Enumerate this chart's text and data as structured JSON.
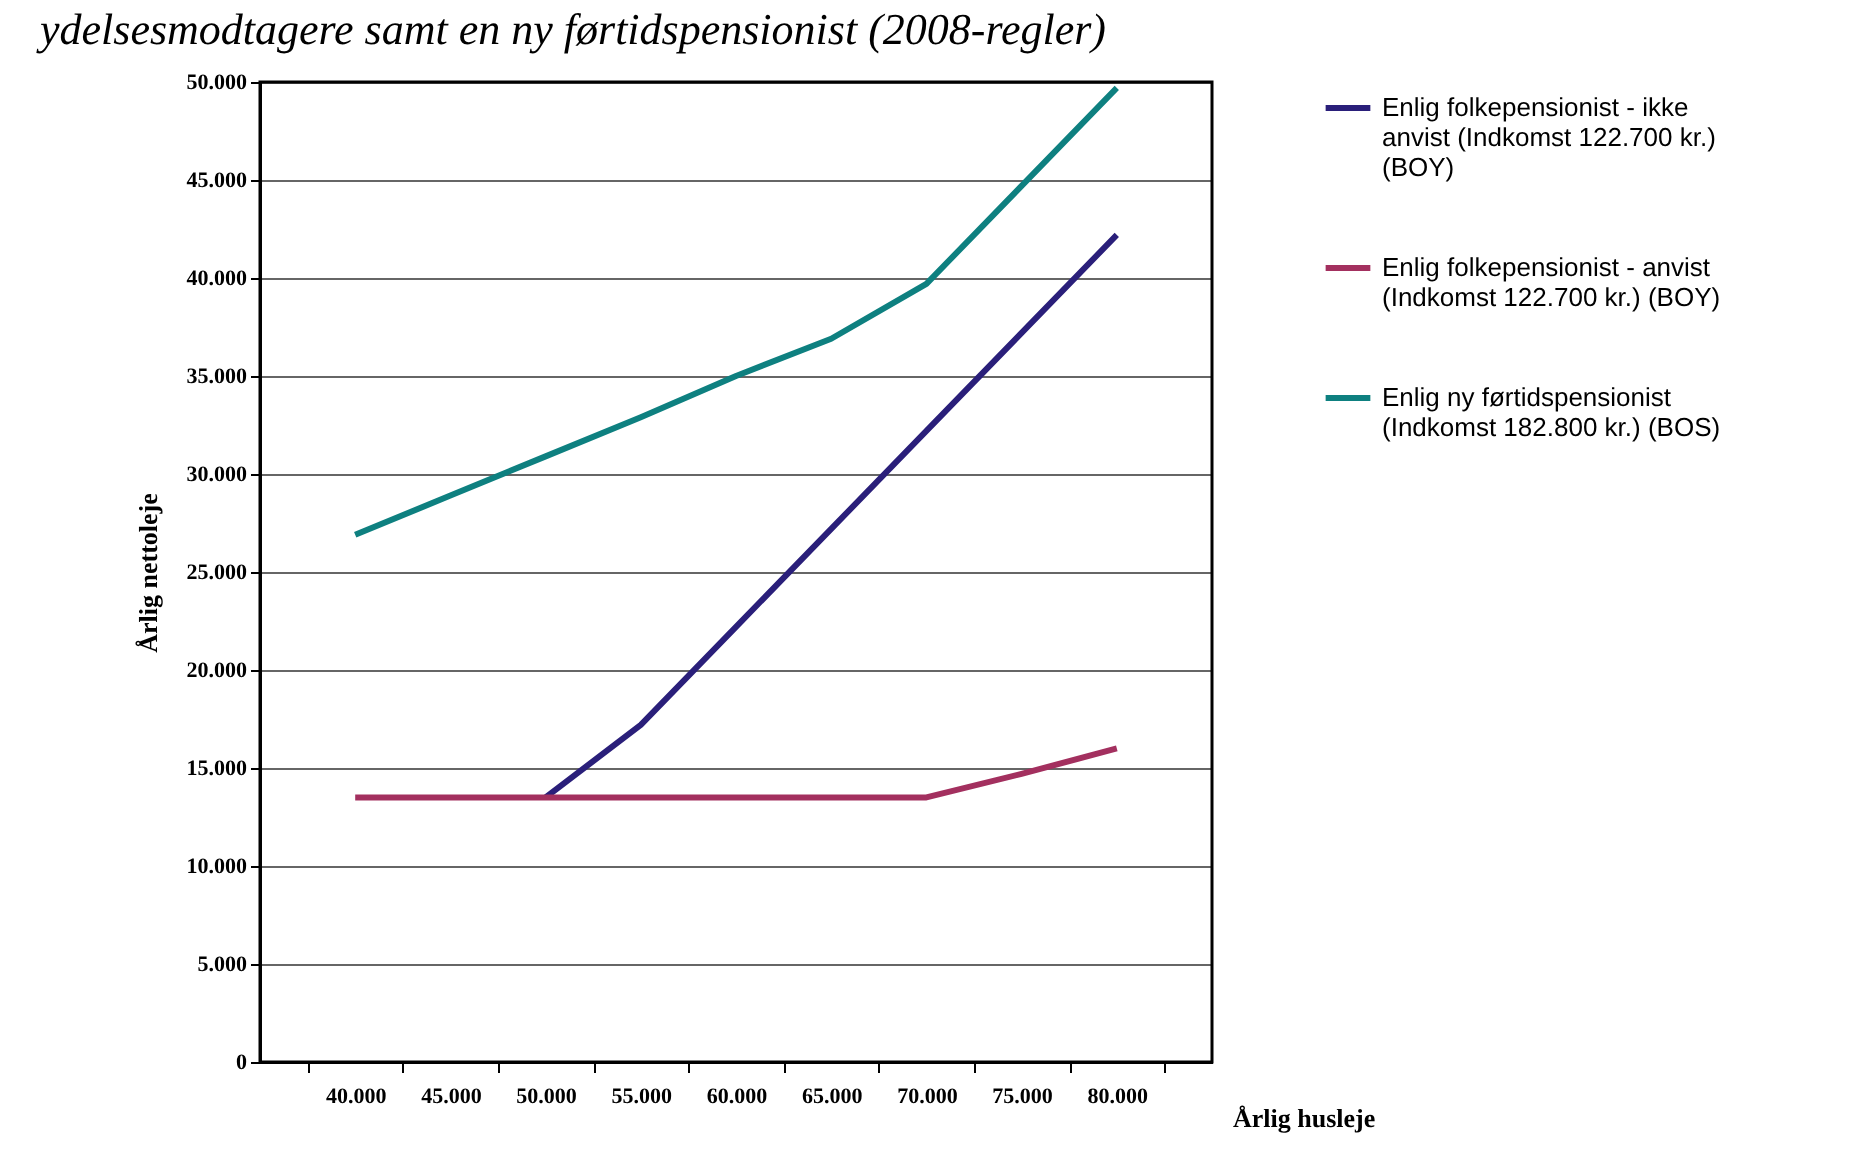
{
  "chart_data": {
    "type": "line",
    "title": "ydelsesmodtagere samt en ny førtidspensionist (2008-regler)",
    "xlabel": "Årlig husleje",
    "ylabel": "Årlig nettoleje",
    "categories": [
      "40.000",
      "45.000",
      "50.000",
      "55.000",
      "60.000",
      "65.000",
      "70.000",
      "75.000",
      "80.000"
    ],
    "ylim": [
      0,
      50000
    ],
    "yticks": [
      {
        "value": 0,
        "label": "0"
      },
      {
        "value": 5000,
        "label": "5.000"
      },
      {
        "value": 10000,
        "label": "10.000"
      },
      {
        "value": 15000,
        "label": "15.000"
      },
      {
        "value": 20000,
        "label": "20.000"
      },
      {
        "value": 25000,
        "label": "25.000"
      },
      {
        "value": 30000,
        "label": "30.000"
      },
      {
        "value": 35000,
        "label": "35.000"
      },
      {
        "value": 40000,
        "label": "40.000"
      },
      {
        "value": 45000,
        "label": "45.000"
      },
      {
        "value": 50000,
        "label": "50.000"
      }
    ],
    "grid": "y",
    "legend": "right",
    "marker": "none",
    "line_style": "solid",
    "series": [
      {
        "name": "Enlig folkepensionist - ikke anvist (Indkomst 122.700 kr.) (BOY)",
        "color": "#2a1f7a",
        "values": [
          null,
          null,
          13500,
          17200,
          22200,
          27200,
          32200,
          37200,
          42200
        ]
      },
      {
        "name": "Enlig folkepensionist - anvist (Indkomst 122.700 kr.) (BOY)",
        "color": "#a3305f",
        "values": [
          13500,
          13500,
          13500,
          13500,
          13500,
          13500,
          13500,
          14700,
          16000
        ]
      },
      {
        "name": "Enlig ny førtidspensionist (Indkomst 182.800 kr.) (BOS)",
        "color": "#0e8080",
        "values": [
          26900,
          28900,
          30900,
          32900,
          35000,
          36900,
          39700,
          44700,
          49700
        ]
      }
    ]
  }
}
